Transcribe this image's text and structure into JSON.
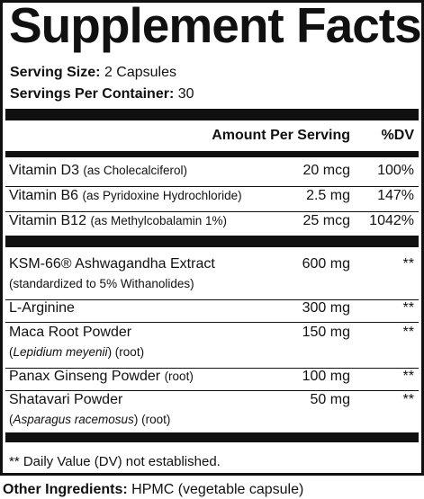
{
  "header": {
    "title": "Supplement Facts"
  },
  "serving": {
    "size_label": "Serving Size:",
    "size_value": "2 Capsules",
    "per_container_label": "Servings Per Container:",
    "per_container_value": "30"
  },
  "columns": {
    "amount": "Amount Per Serving",
    "dv": "%DV"
  },
  "vitamins": [
    {
      "name": "Vitamin D3",
      "detail": "(as Cholecalciferol)",
      "amount": "20 mcg",
      "dv": "100%"
    },
    {
      "name": "Vitamin B6",
      "detail": "(as Pyridoxine Hydrochloride)",
      "amount": "2.5 mg",
      "dv": "147%"
    },
    {
      "name": "Vitamin B12",
      "detail": "(as Methylcobalamin 1%)",
      "amount": "25 mcg",
      "dv": "1042%"
    }
  ],
  "ingredients": [
    {
      "name": "KSM-66® Ashwagandha Extract",
      "detail": {
        "pre": "(standardized to 5% Withanolides)"
      },
      "amount": "600 mg",
      "dv": "**"
    },
    {
      "name": "L-Arginine",
      "amount": "300 mg",
      "dv": "**"
    },
    {
      "name": "Maca Root Powder",
      "detail": {
        "pre": "(",
        "italic": "Lepidium meyenii",
        "post": ") (root)"
      },
      "amount": "150 mg",
      "dv": "**"
    },
    {
      "name": "Panax Ginseng Powder",
      "inline": "(root)",
      "amount": "100 mg",
      "dv": "**"
    },
    {
      "name": "Shatavari Powder",
      "detail": {
        "pre": "(",
        "italic": "Asparagus racemosus",
        "post": ") (root)"
      },
      "amount": "50 mg",
      "dv": "**"
    }
  ],
  "footnote": "** Daily Value (DV) not established.",
  "other_ingredients": {
    "label": "Other Ingredients:",
    "value": "HPMC (vegetable capsule)"
  }
}
